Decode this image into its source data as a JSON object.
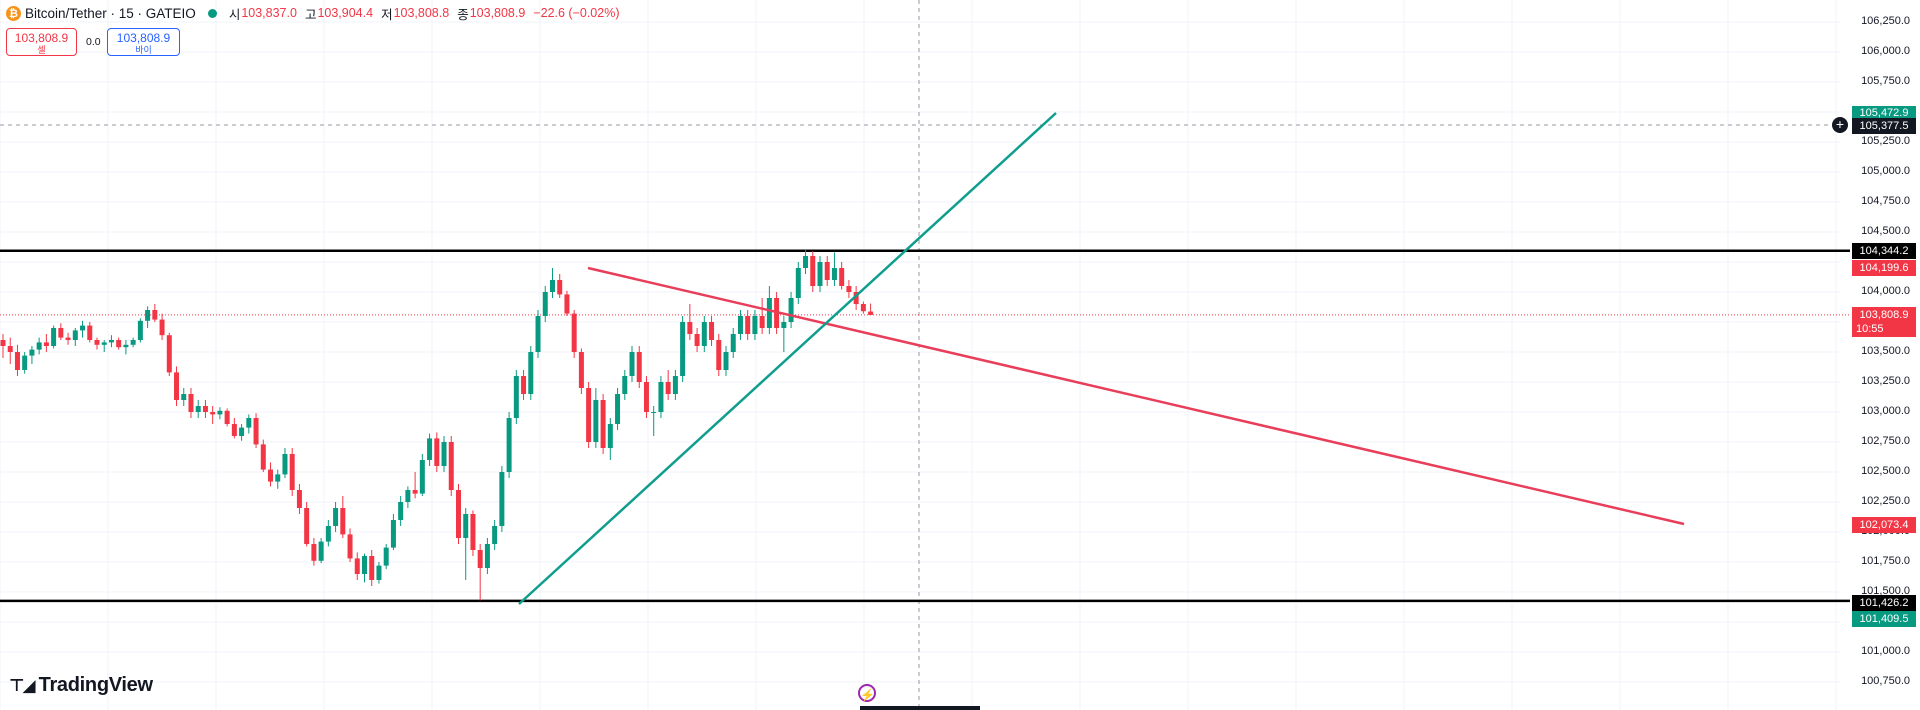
{
  "header": {
    "icon_glyph": "₿",
    "symbol_title": "Bitcoin/Tether · 15 · GATEIO",
    "open_label": "시",
    "open_value": "103,837.0",
    "high_label": "고",
    "high_value": "103,904.4",
    "low_label": "저",
    "low_value": "103,808.8",
    "close_label": "종",
    "close_value": "103,808.9",
    "change": "−22.6 (−0.02%)"
  },
  "trade": {
    "sell_price": "103,808.9",
    "sell_label": "셀",
    "spread": "0.0",
    "buy_price": "103,808.9",
    "buy_label": "바이"
  },
  "axis": {
    "labels": [
      "106,250.0",
      "106,000.0",
      "105,750.0",
      "105,500.0",
      "105,250.0",
      "105,000.0",
      "104,750.0",
      "104,500.0",
      "104,000.0",
      "103,500.0",
      "103,250.0",
      "103,000.0",
      "102,750.0",
      "102,500.0",
      "102,250.0",
      "102,000.0",
      "101,750.0",
      "101,500.0",
      "101,000.0",
      "100,750.0"
    ]
  },
  "tags": {
    "crosshair": "105,377.5",
    "teal_top": "105,472.9",
    "black_top": "104,344.2",
    "red_upper": "104,199.6",
    "last_price": "103,808.9",
    "countdown": "10:55",
    "red_lower": "102,073.4",
    "black_bottom": "101,426.2",
    "teal_bottom": "101,409.5"
  },
  "colors": {
    "up": "#089981",
    "down": "#f23645",
    "level_line": "#000000",
    "trend_down": "#e83e5a",
    "trend_up": "#0f9e8e",
    "crosshair_tag": "#131722"
  },
  "icons": {
    "plus": "plus-circle-icon",
    "flash": "flash-icon",
    "logo": "tradingview-logo-icon"
  },
  "logo_text": "TradingView",
  "chart_data": {
    "type": "candlestick",
    "title": "Bitcoin/Tether · 15 · GATEIO",
    "ylim": [
      100650,
      106350
    ],
    "price_lines": [
      104344.2,
      101426.2
    ],
    "ohlc": [
      [
        103600,
        103650,
        103450,
        103550
      ],
      [
        103550,
        103620,
        103400,
        103500
      ],
      [
        103500,
        103560,
        103300,
        103350
      ],
      [
        103350,
        103500,
        103320,
        103470
      ],
      [
        103470,
        103550,
        103400,
        103520
      ],
      [
        103520,
        103620,
        103480,
        103580
      ],
      [
        103580,
        103650,
        103500,
        103550
      ],
      [
        103550,
        103720,
        103530,
        103700
      ],
      [
        103700,
        103740,
        103600,
        103620
      ],
      [
        103620,
        103660,
        103560,
        103600
      ],
      [
        103600,
        103700,
        103550,
        103680
      ],
      [
        103680,
        103760,
        103620,
        103720
      ],
      [
        103720,
        103750,
        103580,
        103600
      ],
      [
        103600,
        103620,
        103520,
        103560
      ],
      [
        103560,
        103600,
        103500,
        103580
      ],
      [
        103580,
        103640,
        103540,
        103600
      ],
      [
        103600,
        103620,
        103520,
        103540
      ],
      [
        103540,
        103600,
        103480,
        103560
      ],
      [
        103560,
        103620,
        103540,
        103600
      ],
      [
        103600,
        103780,
        103580,
        103760
      ],
      [
        103760,
        103880,
        103700,
        103850
      ],
      [
        103850,
        103900,
        103750,
        103770
      ],
      [
        103770,
        103820,
        103600,
        103640
      ],
      [
        103640,
        103660,
        103300,
        103330
      ],
      [
        103330,
        103380,
        103050,
        103100
      ],
      [
        103100,
        103200,
        103050,
        103150
      ],
      [
        103150,
        103200,
        102950,
        103000
      ],
      [
        103000,
        103100,
        102950,
        103050
      ],
      [
        103050,
        103100,
        102950,
        103000
      ],
      [
        103000,
        103050,
        102900,
        102980
      ],
      [
        102980,
        103040,
        102940,
        103010
      ],
      [
        103010,
        103030,
        102880,
        102900
      ],
      [
        102900,
        102950,
        102780,
        102800
      ],
      [
        102800,
        102900,
        102760,
        102870
      ],
      [
        102870,
        102980,
        102820,
        102950
      ],
      [
        102950,
        102990,
        102700,
        102730
      ],
      [
        102730,
        102770,
        102500,
        102520
      ],
      [
        102520,
        102580,
        102380,
        102420
      ],
      [
        102420,
        102520,
        102360,
        102480
      ],
      [
        102480,
        102700,
        102450,
        102650
      ],
      [
        102650,
        102700,
        102300,
        102350
      ],
      [
        102350,
        102400,
        102150,
        102200
      ],
      [
        102200,
        102250,
        101880,
        101900
      ],
      [
        101900,
        101950,
        101720,
        101760
      ],
      [
        101760,
        101950,
        101740,
        101920
      ],
      [
        101920,
        102100,
        101880,
        102050
      ],
      [
        102050,
        102250,
        102000,
        102200
      ],
      [
        102200,
        102300,
        101950,
        101980
      ],
      [
        101980,
        102030,
        101750,
        101780
      ],
      [
        101780,
        101830,
        101600,
        101650
      ],
      [
        101650,
        101820,
        101580,
        101800
      ],
      [
        101800,
        101850,
        101550,
        101600
      ],
      [
        101600,
        101750,
        101570,
        101720
      ],
      [
        101720,
        101900,
        101690,
        101870
      ],
      [
        101870,
        102150,
        101850,
        102100
      ],
      [
        102100,
        102300,
        102050,
        102250
      ],
      [
        102250,
        102380,
        102200,
        102350
      ],
      [
        102350,
        102500,
        102280,
        102320
      ],
      [
        102320,
        102650,
        102300,
        102600
      ],
      [
        102600,
        102820,
        102550,
        102780
      ],
      [
        102780,
        102830,
        102500,
        102550
      ],
      [
        102550,
        102800,
        102500,
        102750
      ],
      [
        102750,
        102800,
        102300,
        102350
      ],
      [
        102350,
        102400,
        101900,
        101950
      ],
      [
        101950,
        102200,
        101600,
        102150
      ],
      [
        102150,
        102180,
        101800,
        101850
      ],
      [
        101850,
        101900,
        101430,
        101700
      ],
      [
        101700,
        101950,
        101650,
        101900
      ],
      [
        101900,
        102100,
        101850,
        102050
      ],
      [
        102050,
        102550,
        102000,
        102500
      ],
      [
        102500,
        103000,
        102450,
        102950
      ],
      [
        102950,
        103350,
        102900,
        103300
      ],
      [
        103300,
        103350,
        103100,
        103150
      ],
      [
        103150,
        103550,
        103100,
        103500
      ],
      [
        103500,
        103850,
        103450,
        103800
      ],
      [
        103800,
        104050,
        103750,
        104000
      ],
      [
        104000,
        104200,
        103950,
        104100
      ],
      [
        104100,
        104150,
        103950,
        103980
      ],
      [
        103980,
        104010,
        103800,
        103820
      ],
      [
        103820,
        103850,
        103450,
        103500
      ],
      [
        103500,
        103530,
        103150,
        103200
      ],
      [
        103200,
        103250,
        102700,
        102750
      ],
      [
        102750,
        103200,
        102700,
        103100
      ],
      [
        103100,
        103150,
        102650,
        102700
      ],
      [
        102700,
        102950,
        102600,
        102900
      ],
      [
        102900,
        103200,
        102850,
        103150
      ],
      [
        103150,
        103350,
        103100,
        103300
      ],
      [
        103300,
        103550,
        103250,
        103500
      ],
      [
        103500,
        103550,
        103200,
        103250
      ],
      [
        103250,
        103300,
        102950,
        103000
      ],
      [
        103000,
        103050,
        102800,
        103000
      ],
      [
        103000,
        103300,
        102950,
        103250
      ],
      [
        103250,
        103350,
        103100,
        103150
      ],
      [
        103150,
        103350,
        103100,
        103300
      ],
      [
        103300,
        103800,
        103250,
        103750
      ],
      [
        103750,
        103900,
        103600,
        103650
      ],
      [
        103650,
        103700,
        103500,
        103550
      ],
      [
        103550,
        103800,
        103500,
        103750
      ],
      [
        103750,
        103800,
        103550,
        103600
      ],
      [
        103600,
        103650,
        103300,
        103350
      ],
      [
        103350,
        103550,
        103300,
        103500
      ],
      [
        103500,
        103700,
        103450,
        103650
      ],
      [
        103650,
        103850,
        103600,
        103800
      ],
      [
        103800,
        103850,
        103600,
        103650
      ],
      [
        103650,
        103850,
        103600,
        103800
      ],
      [
        103800,
        103950,
        103650,
        103700
      ],
      [
        103700,
        104050,
        103650,
        103950
      ],
      [
        103950,
        104000,
        103650,
        103700
      ],
      [
        103700,
        103800,
        103500,
        103750
      ],
      [
        103750,
        104000,
        103700,
        103950
      ],
      [
        103950,
        104250,
        103900,
        104200
      ],
      [
        104200,
        104350,
        104150,
        104300
      ],
      [
        104300,
        104340,
        104000,
        104050
      ],
      [
        104050,
        104300,
        104000,
        104250
      ],
      [
        104250,
        104300,
        104050,
        104100
      ],
      [
        104100,
        104330,
        104050,
        104200
      ],
      [
        104200,
        104250,
        104020,
        104050
      ],
      [
        104050,
        104100,
        103950,
        104000
      ],
      [
        104000,
        104050,
        103850,
        103900
      ],
      [
        103900,
        103920,
        103820,
        103840
      ],
      [
        103837,
        103904,
        103809,
        103809
      ]
    ]
  }
}
